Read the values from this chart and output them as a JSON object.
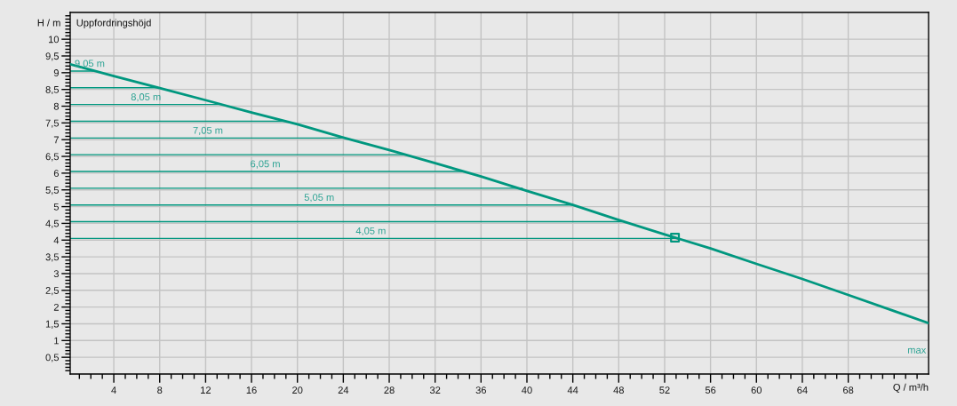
{
  "chart_data": {
    "type": "line",
    "title": "Uppfordringshöjd",
    "xlabel": "Q / m³/h",
    "ylabel": "H / m",
    "xlim": [
      0.2,
      75
    ],
    "ylim": [
      0,
      10.8
    ],
    "grid": true,
    "xticks": [
      {
        "value": 1,
        "label": null
      },
      {
        "value": 2,
        "label": null
      },
      {
        "value": 3,
        "label": null
      },
      4,
      {
        "value": 5,
        "label": null
      },
      {
        "value": 6,
        "label": null
      },
      {
        "value": 7,
        "label": null
      },
      8,
      {
        "value": 9,
        "label": null
      },
      {
        "value": 10,
        "label": null
      },
      {
        "value": 11,
        "label": null
      },
      12,
      {
        "value": 13,
        "label": null
      },
      {
        "value": 14,
        "label": null
      },
      {
        "value": 15,
        "label": null
      },
      16,
      {
        "value": 17,
        "label": null
      },
      {
        "value": 18,
        "label": null
      },
      {
        "value": 19,
        "label": null
      },
      20,
      {
        "value": 21,
        "label": null
      },
      {
        "value": 22,
        "label": null
      },
      {
        "value": 23,
        "label": null
      },
      24,
      {
        "value": 25,
        "label": null
      },
      {
        "value": 26,
        "label": null
      },
      {
        "value": 27,
        "label": null
      },
      28,
      {
        "value": 29,
        "label": null
      },
      {
        "value": 30,
        "label": null
      },
      {
        "value": 31,
        "label": null
      },
      32,
      {
        "value": 33,
        "label": null
      },
      {
        "value": 34,
        "label": null
      },
      {
        "value": 35,
        "label": null
      },
      36,
      {
        "value": 37,
        "label": null
      },
      {
        "value": 38,
        "label": null
      },
      {
        "value": 39,
        "label": null
      },
      40,
      {
        "value": 41,
        "label": null
      },
      {
        "value": 42,
        "label": null
      },
      {
        "value": 43,
        "label": null
      },
      44,
      {
        "value": 45,
        "label": null
      },
      {
        "value": 46,
        "label": null
      },
      {
        "value": 47,
        "label": null
      },
      48,
      {
        "value": 49,
        "label": null
      },
      {
        "value": 50,
        "label": null
      },
      {
        "value": 51,
        "label": null
      },
      52,
      {
        "value": 53,
        "label": null
      },
      {
        "value": 54,
        "label": null
      },
      {
        "value": 55,
        "label": null
      },
      56,
      {
        "value": 57,
        "label": null
      },
      {
        "value": 58,
        "label": null
      },
      {
        "value": 59,
        "label": null
      },
      60,
      {
        "value": 61,
        "label": null
      },
      {
        "value": 62,
        "label": null
      },
      {
        "value": 63,
        "label": null
      },
      64,
      {
        "value": 65,
        "label": null
      },
      {
        "value": 66,
        "label": null
      },
      {
        "value": 67,
        "label": null
      },
      68,
      {
        "value": 69,
        "label": null
      },
      {
        "value": 70,
        "label": null
      },
      {
        "value": 71,
        "label": null
      },
      {
        "value": 72,
        "label": null
      },
      {
        "value": 73,
        "label": null
      },
      {
        "value": 74,
        "label": null
      }
    ],
    "yticks": [
      {
        "value": 0.1,
        "label": null
      },
      {
        "value": 0.2,
        "label": null
      },
      {
        "value": 0.3,
        "label": null
      },
      {
        "value": 0.4,
        "label": null
      },
      {
        "value": 0.5,
        "label": "0,5"
      },
      {
        "value": 0.6,
        "label": null
      },
      {
        "value": 0.7,
        "label": null
      },
      {
        "value": 0.8,
        "label": null
      },
      {
        "value": 0.9,
        "label": null
      },
      1,
      {
        "value": 1.1,
        "label": null
      },
      {
        "value": 1.2,
        "label": null
      },
      {
        "value": 1.3,
        "label": null
      },
      {
        "value": 1.4,
        "label": null
      },
      {
        "value": 1.5,
        "label": "1,5"
      },
      {
        "value": 1.6,
        "label": null
      },
      {
        "value": 1.7,
        "label": null
      },
      {
        "value": 1.8,
        "label": null
      },
      {
        "value": 1.9,
        "label": null
      },
      2,
      {
        "value": 2.1,
        "label": null
      },
      {
        "value": 2.2,
        "label": null
      },
      {
        "value": 2.3,
        "label": null
      },
      {
        "value": 2.4,
        "label": null
      },
      {
        "value": 2.5,
        "label": "2,5"
      },
      {
        "value": 2.6,
        "label": null
      },
      {
        "value": 2.7,
        "label": null
      },
      {
        "value": 2.8,
        "label": null
      },
      {
        "value": 2.9,
        "label": null
      },
      3,
      {
        "value": 3.1,
        "label": null
      },
      {
        "value": 3.2,
        "label": null
      },
      {
        "value": 3.3,
        "label": null
      },
      {
        "value": 3.4,
        "label": null
      },
      {
        "value": 3.5,
        "label": "3,5"
      },
      {
        "value": 3.6,
        "label": null
      },
      {
        "value": 3.7,
        "label": null
      },
      {
        "value": 3.8,
        "label": null
      },
      {
        "value": 3.9,
        "label": null
      },
      4,
      {
        "value": 4.1,
        "label": null
      },
      {
        "value": 4.2,
        "label": null
      },
      {
        "value": 4.3,
        "label": null
      },
      {
        "value": 4.4,
        "label": null
      },
      {
        "value": 4.5,
        "label": "4,5"
      },
      {
        "value": 4.6,
        "label": null
      },
      {
        "value": 4.7,
        "label": null
      },
      {
        "value": 4.8,
        "label": null
      },
      {
        "value": 4.9,
        "label": null
      },
      5,
      {
        "value": 5.1,
        "label": null
      },
      {
        "value": 5.2,
        "label": null
      },
      {
        "value": 5.3,
        "label": null
      },
      {
        "value": 5.4,
        "label": null
      },
      {
        "value": 5.5,
        "label": "5,5"
      },
      {
        "value": 5.6,
        "label": null
      },
      {
        "value": 5.7,
        "label": null
      },
      {
        "value": 5.8,
        "label": null
      },
      {
        "value": 5.9,
        "label": null
      },
      6,
      {
        "value": 6.1,
        "label": null
      },
      {
        "value": 6.2,
        "label": null
      },
      {
        "value": 6.3,
        "label": null
      },
      {
        "value": 6.4,
        "label": null
      },
      {
        "value": 6.5,
        "label": "6,5"
      },
      {
        "value": 6.6,
        "label": null
      },
      {
        "value": 6.7,
        "label": null
      },
      {
        "value": 6.8,
        "label": null
      },
      {
        "value": 6.9,
        "label": null
      },
      7,
      {
        "value": 7.1,
        "label": null
      },
      {
        "value": 7.2,
        "label": null
      },
      {
        "value": 7.3,
        "label": null
      },
      {
        "value": 7.4,
        "label": null
      },
      {
        "value": 7.5,
        "label": "7,5"
      },
      {
        "value": 7.6,
        "label": null
      },
      {
        "value": 7.7,
        "label": null
      },
      {
        "value": 7.8,
        "label": null
      },
      {
        "value": 7.9,
        "label": null
      },
      8,
      {
        "value": 8.1,
        "label": null
      },
      {
        "value": 8.2,
        "label": null
      },
      {
        "value": 8.3,
        "label": null
      },
      {
        "value": 8.4,
        "label": null
      },
      {
        "value": 8.5,
        "label": "8,5"
      },
      {
        "value": 8.6,
        "label": null
      },
      {
        "value": 8.7,
        "label": null
      },
      {
        "value": 8.8,
        "label": null
      },
      {
        "value": 8.9,
        "label": null
      },
      9,
      {
        "value": 9.1,
        "label": null
      },
      {
        "value": 9.2,
        "label": null
      },
      {
        "value": 9.3,
        "label": null
      },
      {
        "value": 9.4,
        "label": null
      },
      {
        "value": 9.5,
        "label": "9,5"
      },
      {
        "value": 9.6,
        "label": null
      },
      {
        "value": 9.7,
        "label": null
      },
      {
        "value": 9.8,
        "label": null
      },
      {
        "value": 9.9,
        "label": null
      },
      10,
      {
        "value": 10.1,
        "label": null
      },
      {
        "value": 10.2,
        "label": null
      },
      {
        "value": 10.3,
        "label": null
      },
      {
        "value": 10.4,
        "label": null
      },
      {
        "value": 10.5,
        "label": null
      },
      {
        "value": 10.6,
        "label": null
      },
      {
        "value": 10.7,
        "label": null
      }
    ],
    "series": [
      {
        "name": "max",
        "color": "#00977f",
        "x": [
          0.2,
          4,
          8,
          12,
          16,
          20,
          24,
          28,
          32,
          36,
          40,
          44,
          48,
          52,
          56,
          60,
          64,
          68,
          72,
          75
        ],
        "values": [
          9.25,
          8.9,
          8.54,
          8.18,
          7.81,
          7.46,
          7.06,
          6.69,
          6.3,
          5.9,
          5.47,
          5.05,
          4.6,
          4.17,
          3.75,
          3.29,
          2.84,
          2.36,
          1.88,
          1.52
        ]
      },
      {
        "color": "#00977f",
        "x": [
          0.2,
          2.2
        ],
        "values": [
          9.05,
          9.05
        ]
      },
      {
        "color": "#00977f",
        "x": [
          0.2,
          7.9
        ],
        "values": [
          8.55,
          8.55
        ]
      },
      {
        "color": "#00977f",
        "x": [
          0.2,
          13.5
        ],
        "values": [
          8.05,
          8.05
        ]
      },
      {
        "color": "#00977f",
        "x": [
          0.2,
          19.0
        ],
        "values": [
          7.55,
          7.55
        ]
      },
      {
        "color": "#00977f",
        "x": [
          0.2,
          24.1
        ],
        "values": [
          7.05,
          7.05
        ]
      },
      {
        "color": "#00977f",
        "x": [
          0.2,
          29.4
        ],
        "values": [
          6.55,
          6.55
        ]
      },
      {
        "color": "#00977f",
        "x": [
          0.2,
          34.4
        ],
        "values": [
          6.05,
          6.05
        ]
      },
      {
        "color": "#00977f",
        "x": [
          0.2,
          39.6
        ],
        "values": [
          5.55,
          5.55
        ]
      },
      {
        "color": "#00977f",
        "x": [
          0.2,
          44.0
        ],
        "values": [
          5.05,
          5.05
        ]
      },
      {
        "color": "#00977f",
        "x": [
          0.2,
          48.3
        ],
        "values": [
          4.55,
          4.55
        ]
      },
      {
        "color": "#00977f",
        "x": [
          0.2,
          52.9
        ],
        "values": [
          4.05,
          4.05
        ]
      },
      {
        "type": "scatter",
        "marker": "square",
        "color": "#00977f",
        "x": [
          52.9
        ],
        "values": [
          4.07
        ]
      }
    ],
    "annotations": [
      {
        "text": "9,05 m",
        "x": 1.9,
        "y": 9.05
      },
      {
        "text": "8,05 m",
        "x": 6.8,
        "y": 8.05
      },
      {
        "text": "7,05 m",
        "x": 12.2,
        "y": 7.05
      },
      {
        "text": "6,05 m",
        "x": 17.2,
        "y": 6.05
      },
      {
        "text": "5,05 m",
        "x": 21.9,
        "y": 5.05
      },
      {
        "text": "4,05 m",
        "x": 26.4,
        "y": 4.05
      }
    ]
  }
}
